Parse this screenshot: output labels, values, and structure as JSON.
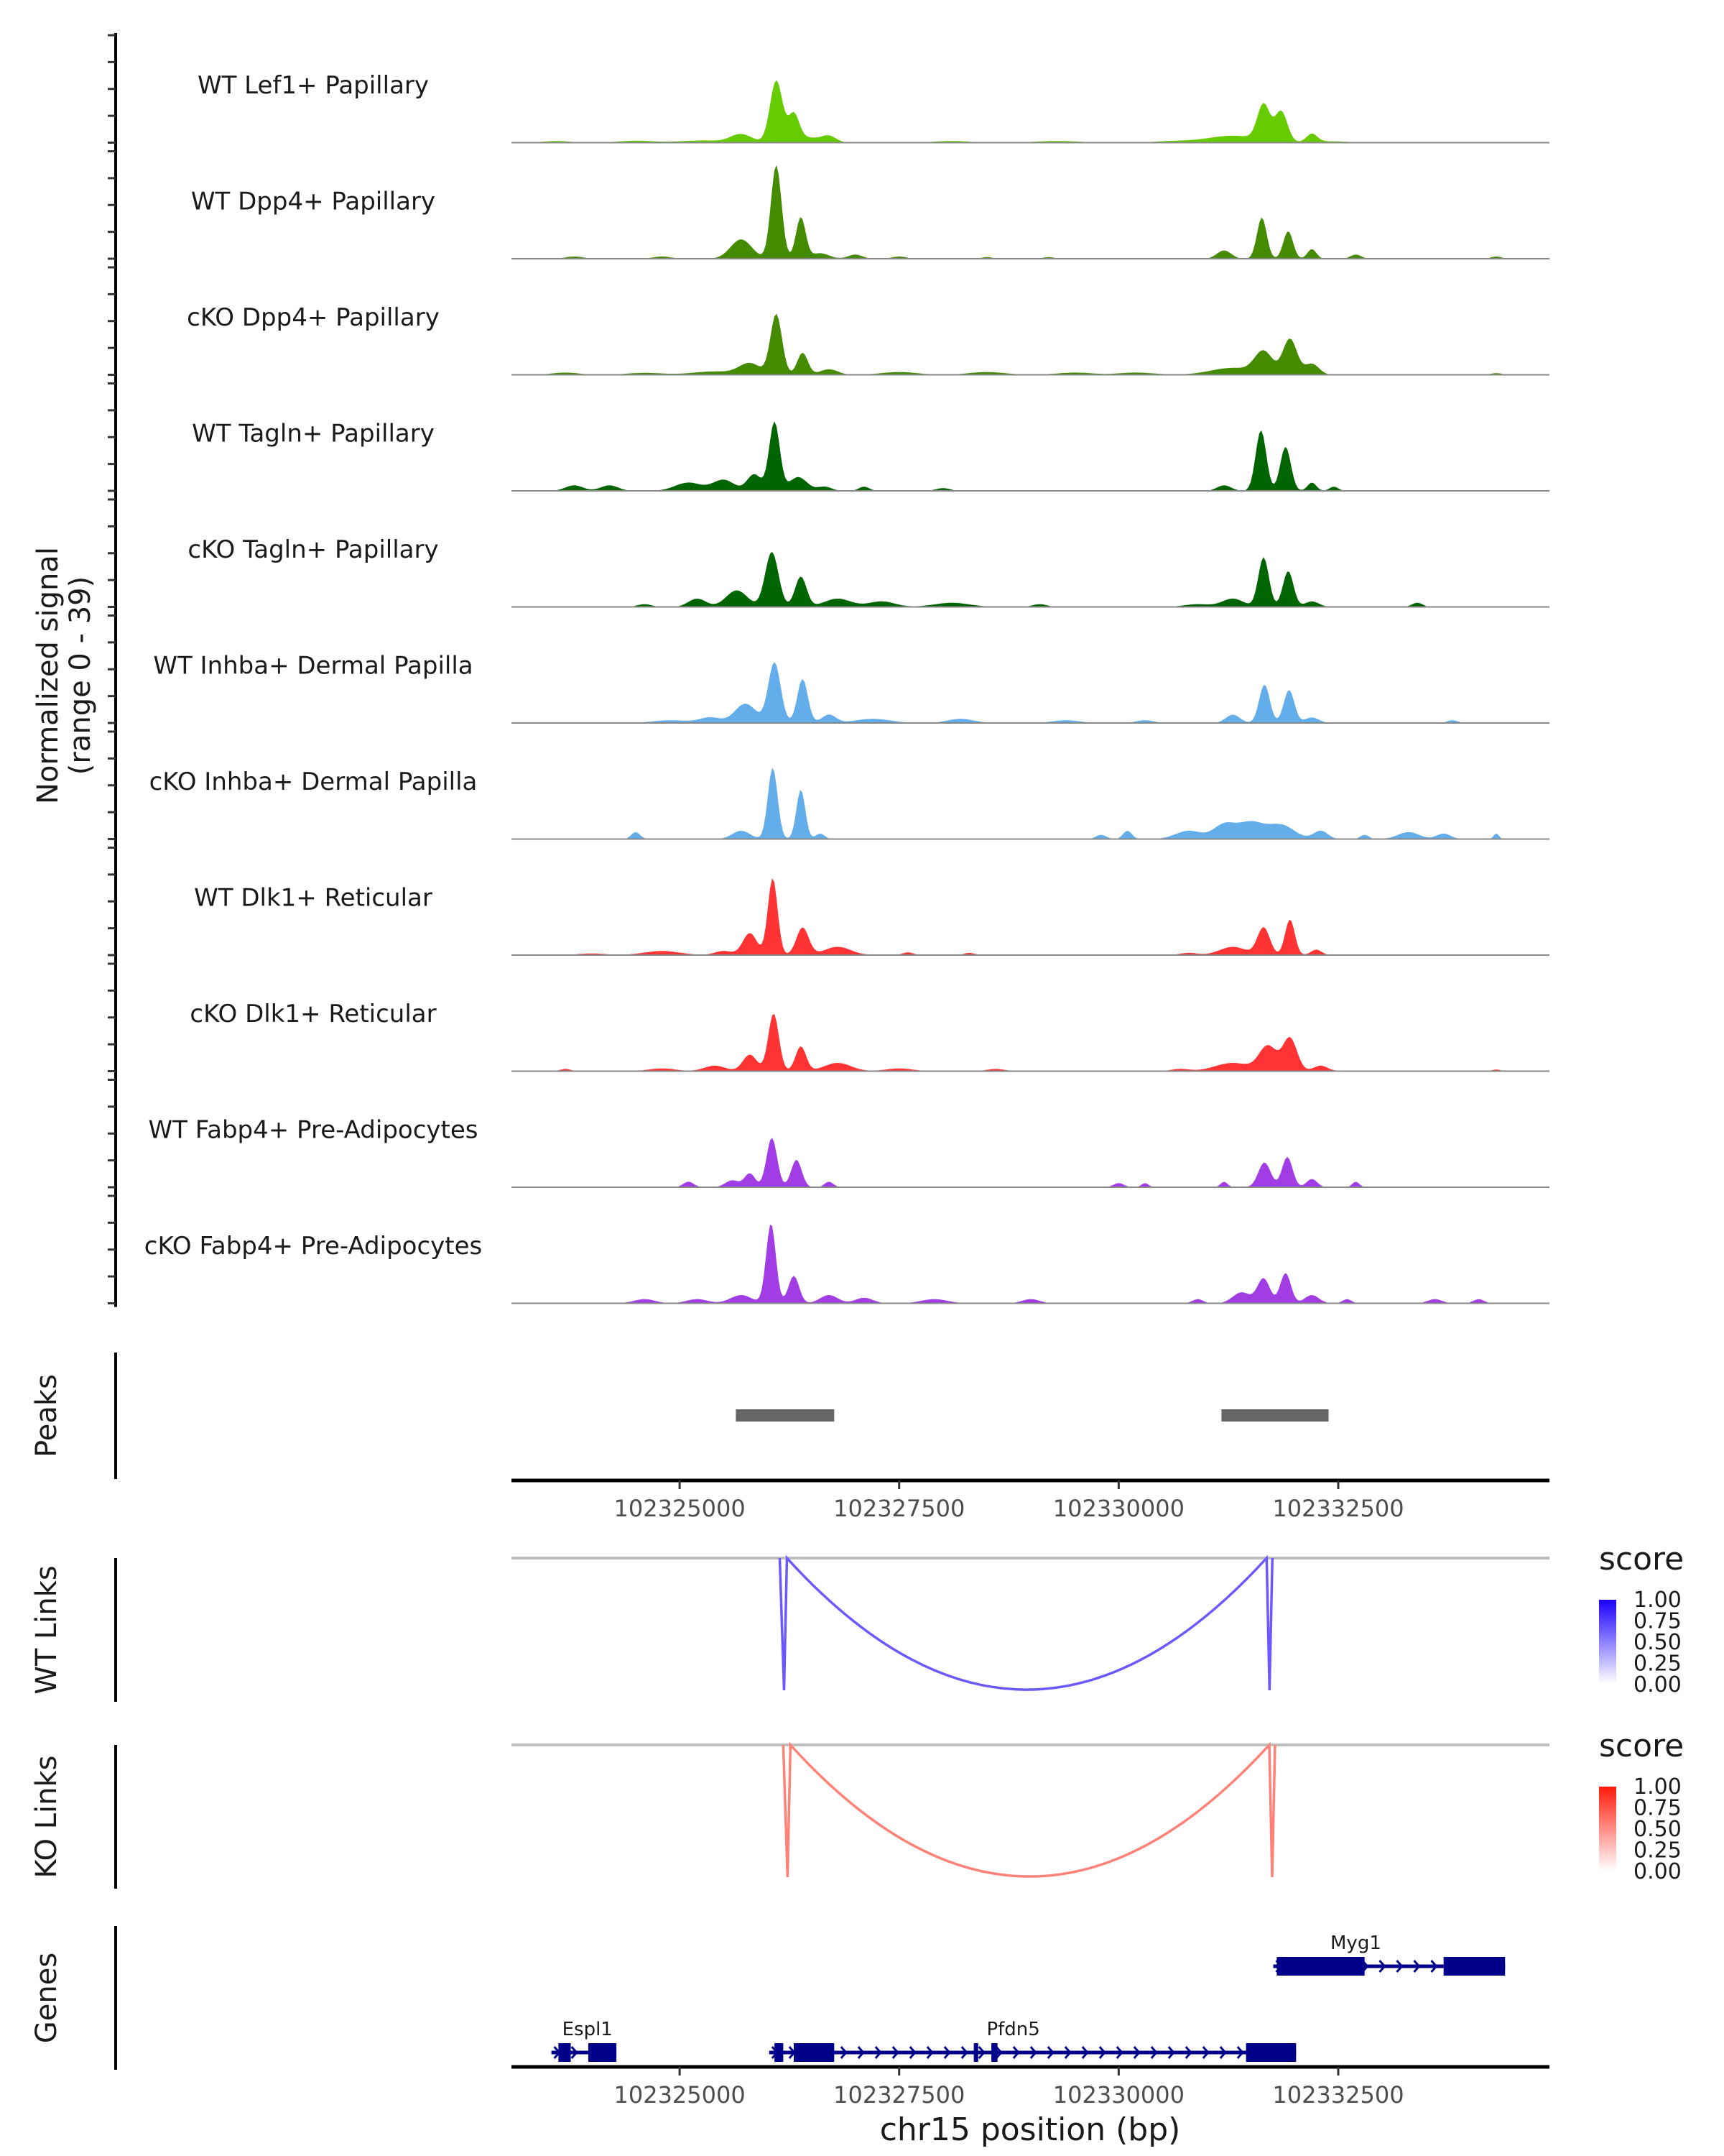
{
  "chart_data": {
    "type": "area",
    "title": "",
    "xlabel": "chr15 position (bp)",
    "ylabel": "Normalized signal\n(range 0 - 39)",
    "ylabel_line1": "Normalized signal",
    "ylabel_line2": "(range 0 - 39)",
    "ylim": [
      0,
      39
    ],
    "xlim": [
      102323085,
      102334905
    ],
    "x_ticks": [
      102325000,
      102327500,
      102330000,
      102332500
    ],
    "x_tick_labels": [
      "102325000",
      "102327500",
      "102330000",
      "102332500"
    ],
    "coverage_tracks": [
      {
        "name": "WT Lef1+ Papillary",
        "color": "#66CC00",
        "peaks": [
          [
            102323600,
            0.6,
            150
          ],
          [
            102324500,
            0.7,
            200
          ],
          [
            102325250,
            0.8,
            250
          ],
          [
            102325700,
            3,
            120
          ],
          [
            102326100,
            22,
            70
          ],
          [
            102326300,
            9,
            60
          ],
          [
            102326400,
            2,
            200
          ],
          [
            102326700,
            2,
            80
          ],
          [
            102328100,
            0.6,
            200
          ],
          [
            102329300,
            0.6,
            250
          ],
          [
            102330600,
            0.5,
            200
          ],
          [
            102331300,
            2.5,
            300
          ],
          [
            102331650,
            13,
            70
          ],
          [
            102331850,
            11,
            70
          ],
          [
            102332200,
            3,
            60
          ],
          [
            102332400,
            0.5,
            200
          ]
        ]
      },
      {
        "name": "WT Dpp4+ Papillary",
        "color": "#458B00",
        "peaks": [
          [
            102323800,
            0.8,
            100
          ],
          [
            102324800,
            0.8,
            100
          ],
          [
            102325700,
            7,
            120
          ],
          [
            102326100,
            34,
            60
          ],
          [
            102326380,
            15,
            55
          ],
          [
            102326600,
            2,
            100
          ],
          [
            102327000,
            1.5,
            80
          ],
          [
            102327500,
            0.8,
            80
          ],
          [
            102328500,
            0.6,
            60
          ],
          [
            102329200,
            0.6,
            60
          ],
          [
            102331200,
            3,
            80
          ],
          [
            102331630,
            15,
            55
          ],
          [
            102331930,
            10,
            55
          ],
          [
            102332200,
            3.5,
            50
          ],
          [
            102332700,
            1.5,
            60
          ],
          [
            102334300,
            0.8,
            60
          ]
        ]
      },
      {
        "name": "cKO Dpp4+ Papillary",
        "color": "#458B00",
        "peaks": [
          [
            102323700,
            0.8,
            150
          ],
          [
            102324600,
            0.7,
            200
          ],
          [
            102325400,
            1.2,
            250
          ],
          [
            102325800,
            4,
            120
          ],
          [
            102326100,
            22,
            65
          ],
          [
            102326400,
            8,
            60
          ],
          [
            102326700,
            2,
            100
          ],
          [
            102327500,
            1,
            200
          ],
          [
            102328500,
            1,
            200
          ],
          [
            102329500,
            0.8,
            200
          ],
          [
            102330200,
            0.8,
            200
          ],
          [
            102331300,
            2.5,
            250
          ],
          [
            102331650,
            8,
            100
          ],
          [
            102331950,
            13,
            80
          ],
          [
            102332200,
            4,
            80
          ],
          [
            102334300,
            0.6,
            60
          ]
        ]
      },
      {
        "name": "WT Tagln+ Papillary",
        "color": "#006400",
        "peaks": [
          [
            102323800,
            2,
            100
          ],
          [
            102324200,
            2,
            100
          ],
          [
            102325100,
            3,
            150
          ],
          [
            102325500,
            4,
            120
          ],
          [
            102325850,
            6,
            80
          ],
          [
            102326080,
            25,
            60
          ],
          [
            102326350,
            5,
            100
          ],
          [
            102326650,
            1.5,
            80
          ],
          [
            102327100,
            1.5,
            60
          ],
          [
            102328000,
            1,
            80
          ],
          [
            102331200,
            2,
            80
          ],
          [
            102331620,
            22,
            60
          ],
          [
            102331900,
            16,
            60
          ],
          [
            102332200,
            3,
            50
          ],
          [
            102332450,
            1.5,
            50
          ]
        ]
      },
      {
        "name": "cKO Tagln+ Papillary",
        "color": "#006400",
        "peaks": [
          [
            102324600,
            1,
            80
          ],
          [
            102325200,
            3,
            100
          ],
          [
            102325650,
            6,
            120
          ],
          [
            102326050,
            20,
            75
          ],
          [
            102326380,
            11,
            65
          ],
          [
            102326800,
            3,
            150
          ],
          [
            102327300,
            2,
            150
          ],
          [
            102328100,
            1.5,
            200
          ],
          [
            102329100,
            1,
            80
          ],
          [
            102330900,
            1,
            150
          ],
          [
            102331300,
            3,
            120
          ],
          [
            102331650,
            18,
            60
          ],
          [
            102331930,
            13,
            60
          ],
          [
            102332200,
            2,
            80
          ],
          [
            102333400,
            1.5,
            60
          ]
        ]
      },
      {
        "name": "WT Inhba+ Dermal Papilla",
        "color": "#63ADEA",
        "peaks": [
          [
            102324900,
            1,
            200
          ],
          [
            102325350,
            2,
            120
          ],
          [
            102325750,
            7,
            120
          ],
          [
            102326080,
            22,
            70
          ],
          [
            102326400,
            16,
            60
          ],
          [
            102326700,
            3,
            80
          ],
          [
            102327200,
            1.5,
            200
          ],
          [
            102328200,
            1.5,
            150
          ],
          [
            102329400,
            1,
            150
          ],
          [
            102330300,
            1,
            100
          ],
          [
            102331300,
            3,
            80
          ],
          [
            102331660,
            14,
            60
          ],
          [
            102331940,
            12,
            60
          ],
          [
            102332200,
            2,
            80
          ],
          [
            102333800,
            1,
            60
          ]
        ]
      },
      {
        "name": "cKO Inhba+ Dermal Papilla",
        "color": "#63ADEA",
        "peaks": [
          [
            102324500,
            2.5,
            50
          ],
          [
            102325700,
            3,
            100
          ],
          [
            102326060,
            26,
            55
          ],
          [
            102326380,
            18,
            50
          ],
          [
            102326600,
            2,
            50
          ],
          [
            102329800,
            1.5,
            60
          ],
          [
            102330100,
            3,
            50
          ],
          [
            102330800,
            3,
            150
          ],
          [
            102331200,
            5,
            120
          ],
          [
            102331500,
            6,
            150
          ],
          [
            102331850,
            5,
            150
          ],
          [
            102332300,
            3,
            80
          ],
          [
            102332800,
            1.5,
            50
          ],
          [
            102333300,
            2.5,
            120
          ],
          [
            102333700,
            2,
            80
          ],
          [
            102334300,
            2,
            30
          ]
        ]
      },
      {
        "name": "WT Dlk1+ Reticular",
        "color": "#FF3333",
        "peaks": [
          [
            102324000,
            0.6,
            150
          ],
          [
            102324800,
            1.5,
            200
          ],
          [
            102325500,
            1.5,
            100
          ],
          [
            102325800,
            8,
            80
          ],
          [
            102326060,
            28,
            55
          ],
          [
            102326400,
            10,
            70
          ],
          [
            102326800,
            3,
            150
          ],
          [
            102327600,
            1,
            60
          ],
          [
            102328300,
            0.8,
            60
          ],
          [
            102330800,
            0.8,
            100
          ],
          [
            102331300,
            3,
            150
          ],
          [
            102331650,
            10,
            70
          ],
          [
            102331950,
            13,
            55
          ],
          [
            102332250,
            2,
            60
          ]
        ]
      },
      {
        "name": "cKO Dlk1+ Reticular",
        "color": "#FF3333",
        "peaks": [
          [
            102323700,
            0.8,
            60
          ],
          [
            102324800,
            1,
            150
          ],
          [
            102325400,
            2,
            120
          ],
          [
            102325800,
            6,
            80
          ],
          [
            102326070,
            21,
            60
          ],
          [
            102326380,
            9,
            60
          ],
          [
            102326800,
            3,
            150
          ],
          [
            102327500,
            1,
            150
          ],
          [
            102328600,
            0.8,
            100
          ],
          [
            102330700,
            0.8,
            100
          ],
          [
            102331300,
            3,
            200
          ],
          [
            102331700,
            9,
            100
          ],
          [
            102331950,
            12,
            80
          ],
          [
            102332300,
            2,
            80
          ],
          [
            102334300,
            0.6,
            50
          ]
        ]
      },
      {
        "name": "WT Fabp4+ Pre-Adipocytes",
        "color": "#A23DE6",
        "peaks": [
          [
            102325100,
            2,
            60
          ],
          [
            102325600,
            2.5,
            80
          ],
          [
            102325800,
            5,
            60
          ],
          [
            102326050,
            18,
            60
          ],
          [
            102326330,
            10,
            60
          ],
          [
            102326700,
            2,
            50
          ],
          [
            102330000,
            1.5,
            60
          ],
          [
            102330300,
            1.5,
            40
          ],
          [
            102331200,
            2,
            40
          ],
          [
            102331660,
            9,
            70
          ],
          [
            102331920,
            11,
            60
          ],
          [
            102332200,
            3,
            60
          ],
          [
            102332700,
            2,
            40
          ]
        ]
      },
      {
        "name": "cKO Fabp4+ Pre-Adipocytes",
        "color": "#A23DE6",
        "peaks": [
          [
            102324600,
            1.5,
            120
          ],
          [
            102325200,
            1.5,
            120
          ],
          [
            102325700,
            3,
            120
          ],
          [
            102326040,
            29,
            55
          ],
          [
            102326300,
            10,
            60
          ],
          [
            102326700,
            3,
            100
          ],
          [
            102327100,
            2,
            100
          ],
          [
            102327900,
            1.5,
            150
          ],
          [
            102329000,
            1.5,
            100
          ],
          [
            102330900,
            1.5,
            60
          ],
          [
            102331400,
            4,
            100
          ],
          [
            102331650,
            9,
            70
          ],
          [
            102331900,
            11,
            60
          ],
          [
            102332200,
            3,
            80
          ],
          [
            102332600,
            1.5,
            50
          ],
          [
            102333600,
            1.5,
            80
          ],
          [
            102334100,
            1.5,
            60
          ]
        ]
      }
    ],
    "peaks_track": {
      "label": "Peaks",
      "color": "#666666",
      "regions": [
        [
          102325640,
          102326760
        ],
        [
          102331170,
          102332390
        ]
      ]
    },
    "link_tracks": [
      {
        "label": "WT Links",
        "legend_title": "score",
        "scale_high": "#1B00FF",
        "scale_low": "#FFFFFF",
        "links": [
          {
            "start": 102326140,
            "end": 102331750,
            "score": 0.65
          }
        ],
        "legend_ticks": [
          "1.00",
          "0.75",
          "0.50",
          "0.25",
          "0.00"
        ]
      },
      {
        "label": "KO Links",
        "legend_title": "score",
        "scale_high": "#FF1A0A",
        "scale_low": "#FFFFFF",
        "links": [
          {
            "start": 102326180,
            "end": 102331780,
            "score": 0.55
          }
        ],
        "legend_ticks": [
          "1.00",
          "0.75",
          "0.50",
          "0.25",
          "0.00"
        ]
      }
    ],
    "genes_track": {
      "label": "Genes",
      "color": "#00008B",
      "genes": [
        {
          "name": "Myg1",
          "start": 102331760,
          "end": 102334400,
          "row": 0,
          "exons": [
            [
              102331800,
              102332800
            ],
            [
              102333700,
              102334400
            ]
          ]
        },
        {
          "name": "Espl1",
          "start": 102323540,
          "end": 102324280,
          "row": 1,
          "exons": [
            [
              102323620,
              102323760
            ],
            [
              102323960,
              102324280
            ]
          ]
        },
        {
          "name": "Pfdn5",
          "start": 102326020,
          "end": 102332020,
          "row": 1,
          "exons": [
            [
              102326080,
              102326180
            ],
            [
              102326300,
              102326760
            ],
            [
              102328350,
              102328400
            ],
            [
              102328550,
              102328620
            ],
            [
              102331450,
              102332020
            ]
          ]
        }
      ]
    }
  }
}
